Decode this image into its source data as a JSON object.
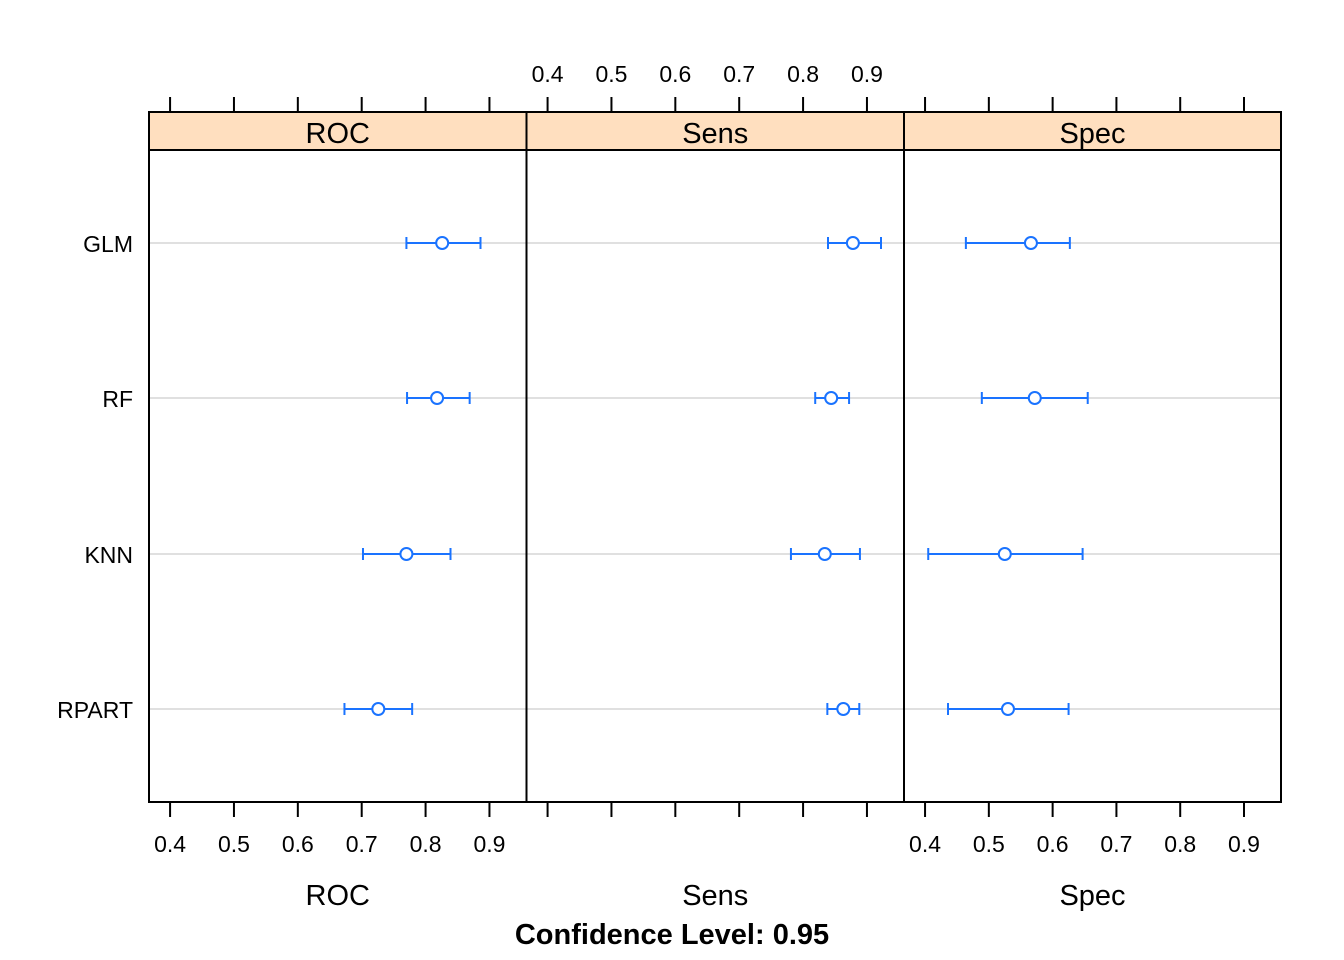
{
  "chart_data": {
    "type": "dotplot",
    "title": "",
    "xlabel_bottom": "Confidence Level: 0.95",
    "categories": [
      "GLM",
      "RF",
      "KNN",
      "RPART"
    ],
    "xlim": [
      0.367,
      0.958
    ],
    "ticks": [
      "0.4",
      "0.5",
      "0.6",
      "0.7",
      "0.8",
      "0.9"
    ],
    "tick_values": [
      0.4,
      0.5,
      0.6,
      0.7,
      0.8,
      0.9
    ],
    "panels": [
      {
        "name": "ROC",
        "xlabel": "ROC",
        "estimate": [
          0.826,
          0.818,
          0.77,
          0.726
        ],
        "lower": [
          0.77,
          0.771,
          0.702,
          0.673
        ],
        "upper": [
          0.886,
          0.869,
          0.839,
          0.779
        ]
      },
      {
        "name": "Sens",
        "xlabel": "Sens",
        "estimate": [
          0.878,
          0.844,
          0.834,
          0.863
        ],
        "lower": [
          0.839,
          0.819,
          0.781,
          0.838
        ],
        "upper": [
          0.922,
          0.872,
          0.889,
          0.888
        ]
      },
      {
        "name": "Spec",
        "xlabel": "Spec",
        "estimate": [
          0.566,
          0.572,
          0.525,
          0.53
        ],
        "lower": [
          0.464,
          0.489,
          0.405,
          0.436
        ],
        "upper": [
          0.627,
          0.655,
          0.647,
          0.625
        ]
      }
    ],
    "colors": {
      "point": "#1a73ff",
      "strip": "#ffdfbf",
      "grid": "#e0e0e0"
    }
  }
}
